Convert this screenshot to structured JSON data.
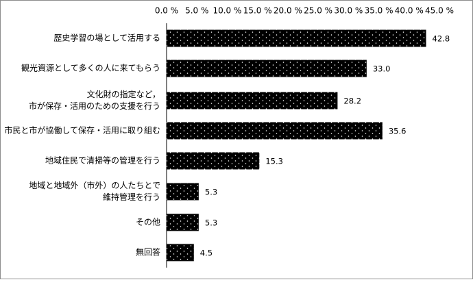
{
  "chart_data": {
    "type": "bar",
    "orientation": "horizontal",
    "categories": [
      [
        "歴史学習の場として活用する"
      ],
      [
        "観光資源として多くの人に来てもらう"
      ],
      [
        "文化財の指定など，",
        "市が保存・活用のための支援を行う"
      ],
      [
        "市民と市が協働して保存・活用に取り組む"
      ],
      [
        "地域住民で清掃等の管理を行う"
      ],
      [
        "地域と地域外（市外）の人たちとで",
        "維持管理を行う"
      ],
      [
        "その他"
      ],
      [
        "無回答"
      ]
    ],
    "values": [
      42.8,
      33.0,
      28.2,
      35.6,
      15.3,
      5.3,
      5.3,
      4.5
    ],
    "value_labels": [
      "42.8",
      "33.0",
      "28.2",
      "35.6",
      "15.3",
      "5.3",
      "5.3",
      "4.5"
    ],
    "x_ticks": [
      "0.0 %",
      "5.0 %",
      "10.0 %",
      "15.0 %",
      "20.0 %",
      "25.0 %",
      "30.0 %",
      "35.0 %",
      "40.0 %",
      "45.0 %"
    ],
    "xlim": [
      0,
      45
    ],
    "axis_position": "top",
    "grid": false,
    "legend": false,
    "bar_fill": "#000000",
    "bar_dot_color": "#ffffff",
    "title": "",
    "xlabel": "",
    "ylabel": ""
  }
}
